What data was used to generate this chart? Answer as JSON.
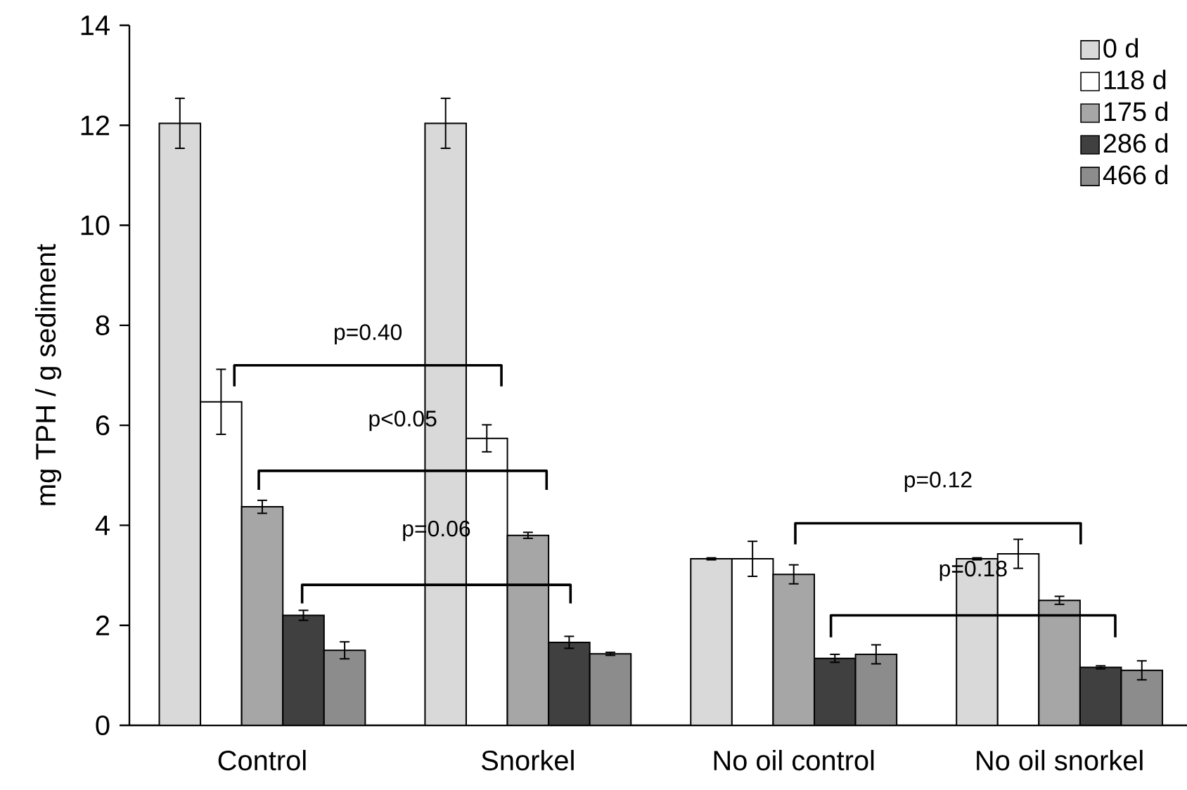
{
  "chart_data": {
    "type": "bar",
    "ylabel": "mg TPH / g sediment",
    "categories": [
      "Control",
      "Snorkel",
      "No oil control",
      "No oil snorkel"
    ],
    "ylim": [
      0,
      14
    ],
    "yticks": [
      0,
      2,
      4,
      6,
      8,
      10,
      12,
      14
    ],
    "legend": "top right",
    "grid": false,
    "series": [
      {
        "name": "0 d",
        "color": "#d9d9d9",
        "values": [
          12.04,
          12.04,
          3.33,
          3.33
        ],
        "errors": [
          0.5,
          0.5,
          0.02,
          0.02
        ]
      },
      {
        "name": "118 d",
        "color": "#ffffff",
        "values": [
          6.47,
          5.74,
          3.33,
          3.43
        ],
        "errors": [
          0.65,
          0.27,
          0.35,
          0.29
        ]
      },
      {
        "name": "175 d",
        "color": "#a6a6a6",
        "values": [
          4.37,
          3.8,
          3.02,
          2.5
        ],
        "errors": [
          0.13,
          0.06,
          0.19,
          0.08
        ]
      },
      {
        "name": "286 d",
        "color": "#404040",
        "values": [
          2.2,
          1.66,
          1.34,
          1.16
        ],
        "errors": [
          0.1,
          0.12,
          0.08,
          0.03
        ]
      },
      {
        "name": "466 d",
        "color": "#8c8c8c",
        "values": [
          1.5,
          1.43,
          1.42,
          1.1
        ],
        "errors": [
          0.17,
          0.03,
          0.19,
          0.19
        ]
      }
    ],
    "annotations": [
      "p=0.40",
      "p<0.05",
      "p=0.06",
      "p=0.12",
      "p=0.18"
    ]
  }
}
